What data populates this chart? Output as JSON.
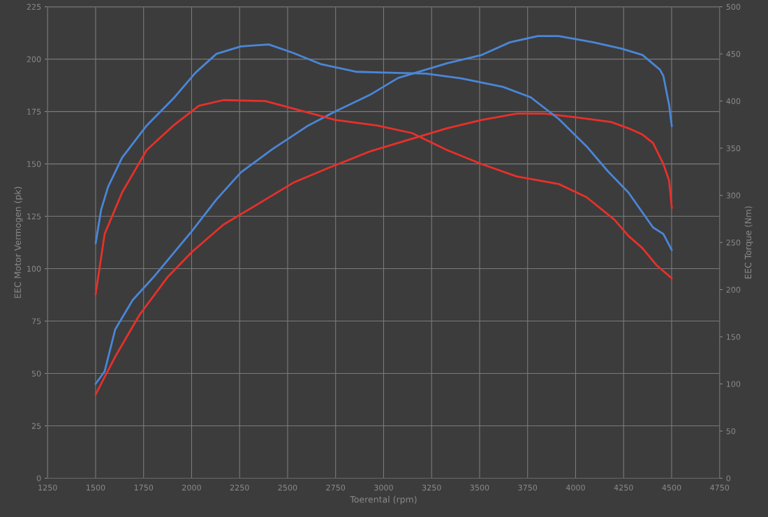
{
  "chart_data": {
    "type": "line",
    "xlabel": "Toerental (rpm)",
    "ylabel": "EEC Motor Vermogen (pk)",
    "y2label": "EEC Torque (Nm)",
    "xlim": [
      1250,
      4750
    ],
    "xticks": [
      1250,
      1500,
      1750,
      2000,
      2250,
      2500,
      2750,
      3000,
      3250,
      3500,
      3750,
      4000,
      4250,
      4500,
      4750
    ],
    "ylim": [
      0,
      225
    ],
    "yticks": [
      0,
      25,
      50,
      75,
      100,
      125,
      150,
      175,
      200,
      225
    ],
    "y2lim": [
      0,
      500
    ],
    "y2ticks": [
      0,
      50,
      100,
      150,
      200,
      250,
      300,
      350,
      400,
      450,
      500
    ],
    "grid": true,
    "legend": false,
    "marker": "none",
    "line_style": "solid",
    "series": [
      {
        "color": "#4a86d8",
        "x": [
          1500,
          1547,
          1602,
          1693,
          1802,
          1911,
          2002,
          2129,
          2257,
          2420,
          2602,
          2748,
          2930,
          3075,
          3221,
          3330,
          3512,
          3657,
          3803,
          3912,
          4094,
          4239,
          4348,
          4439,
          4457,
          4487,
          4501
        ],
        "values": [
          45,
          51,
          71,
          85,
          96,
          108,
          118,
          133,
          146,
          157,
          168,
          175,
          183,
          191,
          195,
          198,
          202,
          208,
          211,
          211,
          208,
          205,
          202,
          195,
          192,
          178,
          168
        ]
      },
      {
        "color": "#4a86d8",
        "axis": "y2",
        "x": [
          1500,
          1529,
          1565,
          1638,
          1766,
          1911,
          2020,
          2129,
          2257,
          2402,
          2529,
          2675,
          2857,
          3039,
          3221,
          3403,
          3622,
          3766,
          3912,
          4057,
          4166,
          4275,
          4403,
          4457,
          4501
        ],
        "values": [
          249,
          285,
          309,
          340,
          374,
          404,
          430,
          450,
          458,
          460,
          451,
          439,
          431,
          430,
          429,
          424,
          415,
          404,
          381,
          352,
          326,
          303,
          266,
          259,
          242
        ]
      },
      {
        "color": "#e8302a",
        "x": [
          1500,
          1602,
          1729,
          1875,
          2002,
          2166,
          2348,
          2529,
          2711,
          2930,
          3111,
          3330,
          3512,
          3694,
          3839,
          4021,
          4185,
          4275,
          4348,
          4403,
          4457,
          4487,
          4501
        ],
        "values": [
          40,
          58,
          78,
          96,
          108,
          121,
          131,
          141,
          148,
          156,
          161,
          167,
          171,
          174,
          174,
          172,
          170,
          167,
          164,
          160,
          150,
          142,
          129
        ]
      },
      {
        "color": "#e8302a",
        "axis": "y2",
        "x": [
          1500,
          1547,
          1638,
          1766,
          1911,
          2038,
          2166,
          2384,
          2566,
          2748,
          2966,
          3148,
          3330,
          3512,
          3694,
          3912,
          4057,
          4203,
          4275,
          4348,
          4421,
          4501
        ],
        "values": [
          195,
          259,
          303,
          348,
          375,
          395,
          401,
          400,
          390,
          380,
          374,
          366,
          348,
          333,
          320,
          312,
          298,
          274,
          257,
          244,
          226,
          212
        ]
      }
    ]
  }
}
